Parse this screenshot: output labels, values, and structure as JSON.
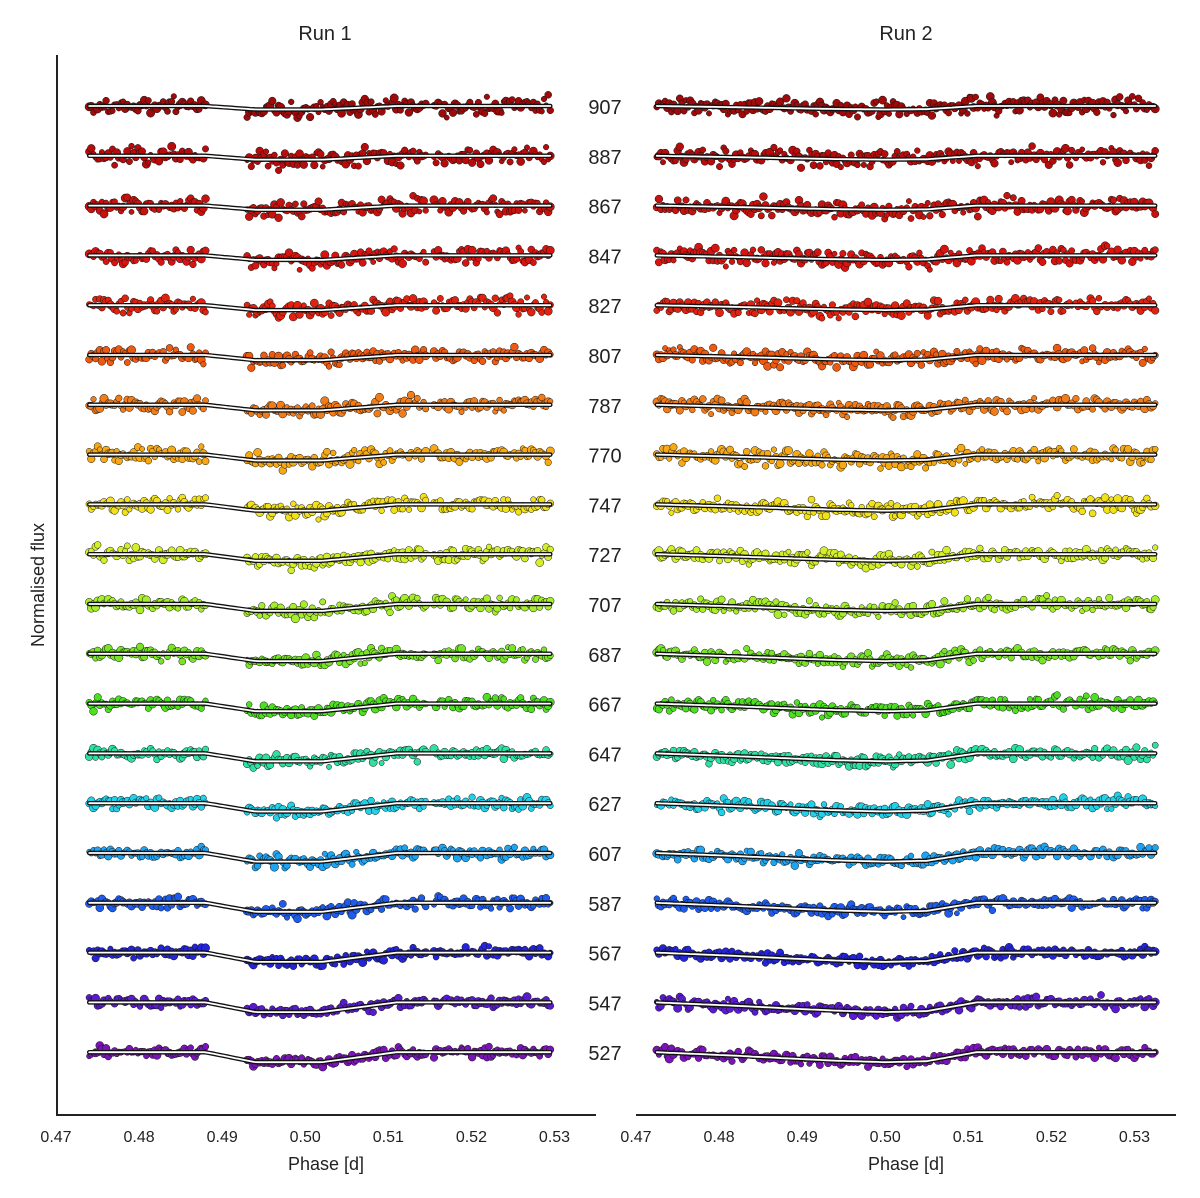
{
  "chart_data": {
    "type": "scatter",
    "description_style": "stacked spectrophotometric light curves with model fits",
    "ylabel": "Normalised flux",
    "wavelength_labels": [
      "907",
      "887",
      "867",
      "847",
      "827",
      "807",
      "787",
      "770",
      "747",
      "727",
      "707",
      "687",
      "667",
      "647",
      "627",
      "607",
      "587",
      "567",
      "547",
      "527"
    ],
    "series_colors": [
      "#a00a0a",
      "#b80c0c",
      "#c8120e",
      "#d81410",
      "#e0220e",
      "#ee5a10",
      "#f27c18",
      "#f7a812",
      "#f2e018",
      "#d4ee28",
      "#a6ee2a",
      "#78e428",
      "#4ede22",
      "#2ee0a2",
      "#22d0e8",
      "#1ea4f2",
      "#1e5cee",
      "#2424d8",
      "#5a1ad0",
      "#7a14b8"
    ],
    "panels": [
      {
        "title": "Run 1",
        "xlabel": "Phase [d]",
        "xlim": [
          0.47,
          0.535
        ],
        "xticks": [
          "0.47",
          "0.48",
          "0.49",
          "0.50",
          "0.51",
          "0.52",
          "0.53"
        ],
        "x_segments": [
          [
            0.474,
            0.488
          ],
          [
            0.493,
            0.5145
          ],
          [
            0.5155,
            0.5295
          ]
        ],
        "transit_shape": [
          [
            0.474,
            0.0
          ],
          [
            0.488,
            0.0
          ],
          [
            0.494,
            1.0
          ],
          [
            0.502,
            1.0
          ],
          [
            0.511,
            0.0
          ],
          [
            0.5295,
            0.0
          ]
        ]
      },
      {
        "title": "Run 2",
        "xlabel": "Phase [d]",
        "xlim": [
          0.47,
          0.535
        ],
        "xticks": [
          "0.47",
          "0.48",
          "0.49",
          "0.50",
          "0.51",
          "0.52",
          "0.53"
        ],
        "x_segments": [
          [
            0.4725,
            0.5022
          ],
          [
            0.5026,
            0.5325
          ]
        ],
        "transit_shape": [
          [
            0.4725,
            0.0
          ],
          [
            0.482,
            0.35
          ],
          [
            0.489,
            0.65
          ],
          [
            0.494,
            0.85
          ],
          [
            0.5,
            1.0
          ],
          [
            0.505,
            0.9
          ],
          [
            0.511,
            0.0
          ],
          [
            0.5325,
            0.0
          ]
        ]
      }
    ]
  }
}
